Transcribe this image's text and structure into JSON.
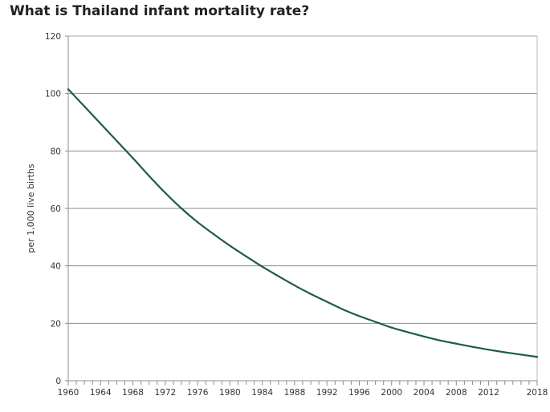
{
  "chart_data": {
    "type": "line",
    "title": "What is Thailand infant mortality rate?",
    "xlabel": "",
    "ylabel": "per 1,000 live births",
    "ylim": [
      0,
      120
    ],
    "xlim": [
      1960,
      2018
    ],
    "y_ticks": [
      0,
      20,
      40,
      60,
      80,
      100,
      120
    ],
    "x_ticks": [
      1960,
      1964,
      1968,
      1972,
      1976,
      1980,
      1984,
      1988,
      1992,
      1996,
      2000,
      2004,
      2008,
      2012,
      2018
    ],
    "grid": true,
    "line_color": "#1e5c48",
    "series": [
      {
        "x": [
          1960,
          1962,
          1964,
          1966,
          1968,
          1970,
          1972,
          1974,
          1976,
          1978,
          1980,
          1982,
          1984,
          1986,
          1988,
          1990,
          1992,
          1994,
          1996,
          1998,
          2000,
          2002,
          2004,
          2006,
          2008,
          2010,
          2012,
          2014,
          2016,
          2018
        ],
        "values": [
          101.5,
          95.5,
          89.5,
          83.5,
          77.5,
          71.3,
          65.4,
          60.0,
          55.2,
          51.0,
          47.0,
          43.3,
          39.7,
          36.4,
          33.2,
          30.2,
          27.5,
          24.8,
          22.5,
          20.5,
          18.5,
          16.9,
          15.4,
          14.0,
          12.9,
          11.8,
          10.8,
          9.9,
          9.1,
          8.3
        ]
      }
    ]
  }
}
